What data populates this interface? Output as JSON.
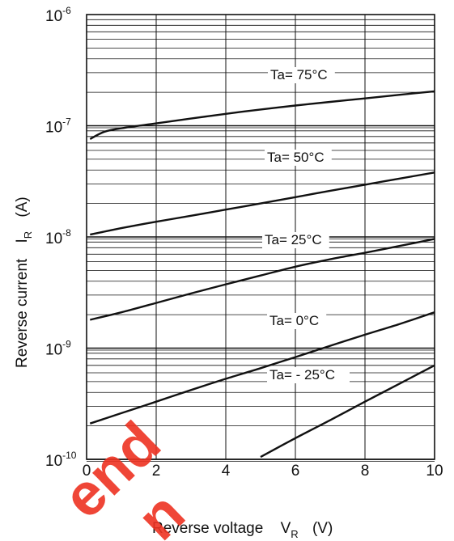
{
  "chart_data": {
    "type": "line",
    "title": "",
    "xlabel": "Reverse voltage",
    "xlabel_symbol": "V",
    "xlabel_sub": "R",
    "xlabel_unit": "(V)",
    "ylabel": "Reverse current",
    "ylabel_symbol": "I",
    "ylabel_sub": "R",
    "ylabel_unit": "(A)",
    "xlim": [
      0,
      10
    ],
    "ylim": [
      1e-10,
      1e-06
    ],
    "yscale": "log",
    "grid": true,
    "x_ticks": [
      {
        "value": 0,
        "label": "0"
      },
      {
        "value": 2,
        "label": "2"
      },
      {
        "value": 4,
        "label": "4"
      },
      {
        "value": 6,
        "label": "6"
      },
      {
        "value": 8,
        "label": "8"
      },
      {
        "value": 10,
        "label": "10"
      }
    ],
    "y_ticks": [
      {
        "value": 1e-10,
        "base": "10",
        "exp": "-10"
      },
      {
        "value": 1e-09,
        "base": "10",
        "exp": "-9"
      },
      {
        "value": 1e-08,
        "base": "10",
        "exp": "-8"
      },
      {
        "value": 1e-07,
        "base": "10",
        "exp": "-7"
      },
      {
        "value": 1e-06,
        "base": "10",
        "exp": "-6"
      }
    ],
    "series": [
      {
        "name": "Ta= 75°C",
        "x": [
          0.1,
          0.5,
          1,
          2,
          3,
          4,
          5,
          6,
          7,
          8,
          9,
          10
        ],
        "y": [
          7.6e-08,
          8.8e-08,
          9.5e-08,
          1.05e-07,
          1.16e-07,
          1.28e-07,
          1.4e-07,
          1.52e-07,
          1.64e-07,
          1.76e-07,
          1.9e-07,
          2.04e-07
        ]
      },
      {
        "name": "Ta= 50°C",
        "x": [
          0.1,
          1,
          2,
          3,
          4,
          5,
          6,
          7,
          8,
          9,
          10
        ],
        "y": [
          1.05e-08,
          1.2e-08,
          1.37e-08,
          1.55e-08,
          1.76e-08,
          2e-08,
          2.28e-08,
          2.6e-08,
          2.95e-08,
          3.35e-08,
          3.8e-08
        ]
      },
      {
        "name": "Ta= 25°C",
        "x": [
          0.1,
          1,
          2,
          3,
          4,
          5,
          6,
          7,
          8,
          9,
          10
        ],
        "y": [
          1.8e-09,
          2.1e-09,
          2.55e-09,
          3.1e-09,
          3.75e-09,
          4.5e-09,
          5.4e-09,
          6.3e-09,
          7.2e-09,
          8.3e-09,
          9.6e-09
        ]
      },
      {
        "name": "Ta= 0°C",
        "x": [
          0.1,
          1,
          2,
          3,
          4,
          5,
          6,
          7,
          8,
          9,
          10
        ],
        "y": [
          2.1e-10,
          2.6e-10,
          3.3e-10,
          4.2e-10,
          5.3e-10,
          6.6e-10,
          8.3e-10,
          1.05e-09,
          1.32e-09,
          1.65e-09,
          2.1e-09
        ]
      },
      {
        "name": "Ta= - 25°C",
        "x": [
          5,
          6,
          7,
          8,
          9,
          10
        ],
        "y": [
          1.05e-10,
          1.55e-10,
          2.25e-10,
          3.3e-10,
          4.8e-10,
          7e-10
        ]
      }
    ],
    "annotations": [
      {
        "text": "Ta= 75°C",
        "series": 0
      },
      {
        "text": "Ta= 50°C",
        "series": 1
      },
      {
        "text": "Ta= 25°C",
        "series": 2
      },
      {
        "text": "Ta= 0°C",
        "series": 3
      },
      {
        "text": "Ta= - 25°C",
        "series": 4
      }
    ],
    "colors": {
      "line": "#111111",
      "grid": "#111111",
      "watermark": "#ee3322"
    }
  },
  "watermark": {
    "line1": "end",
    "line2": "n"
  }
}
